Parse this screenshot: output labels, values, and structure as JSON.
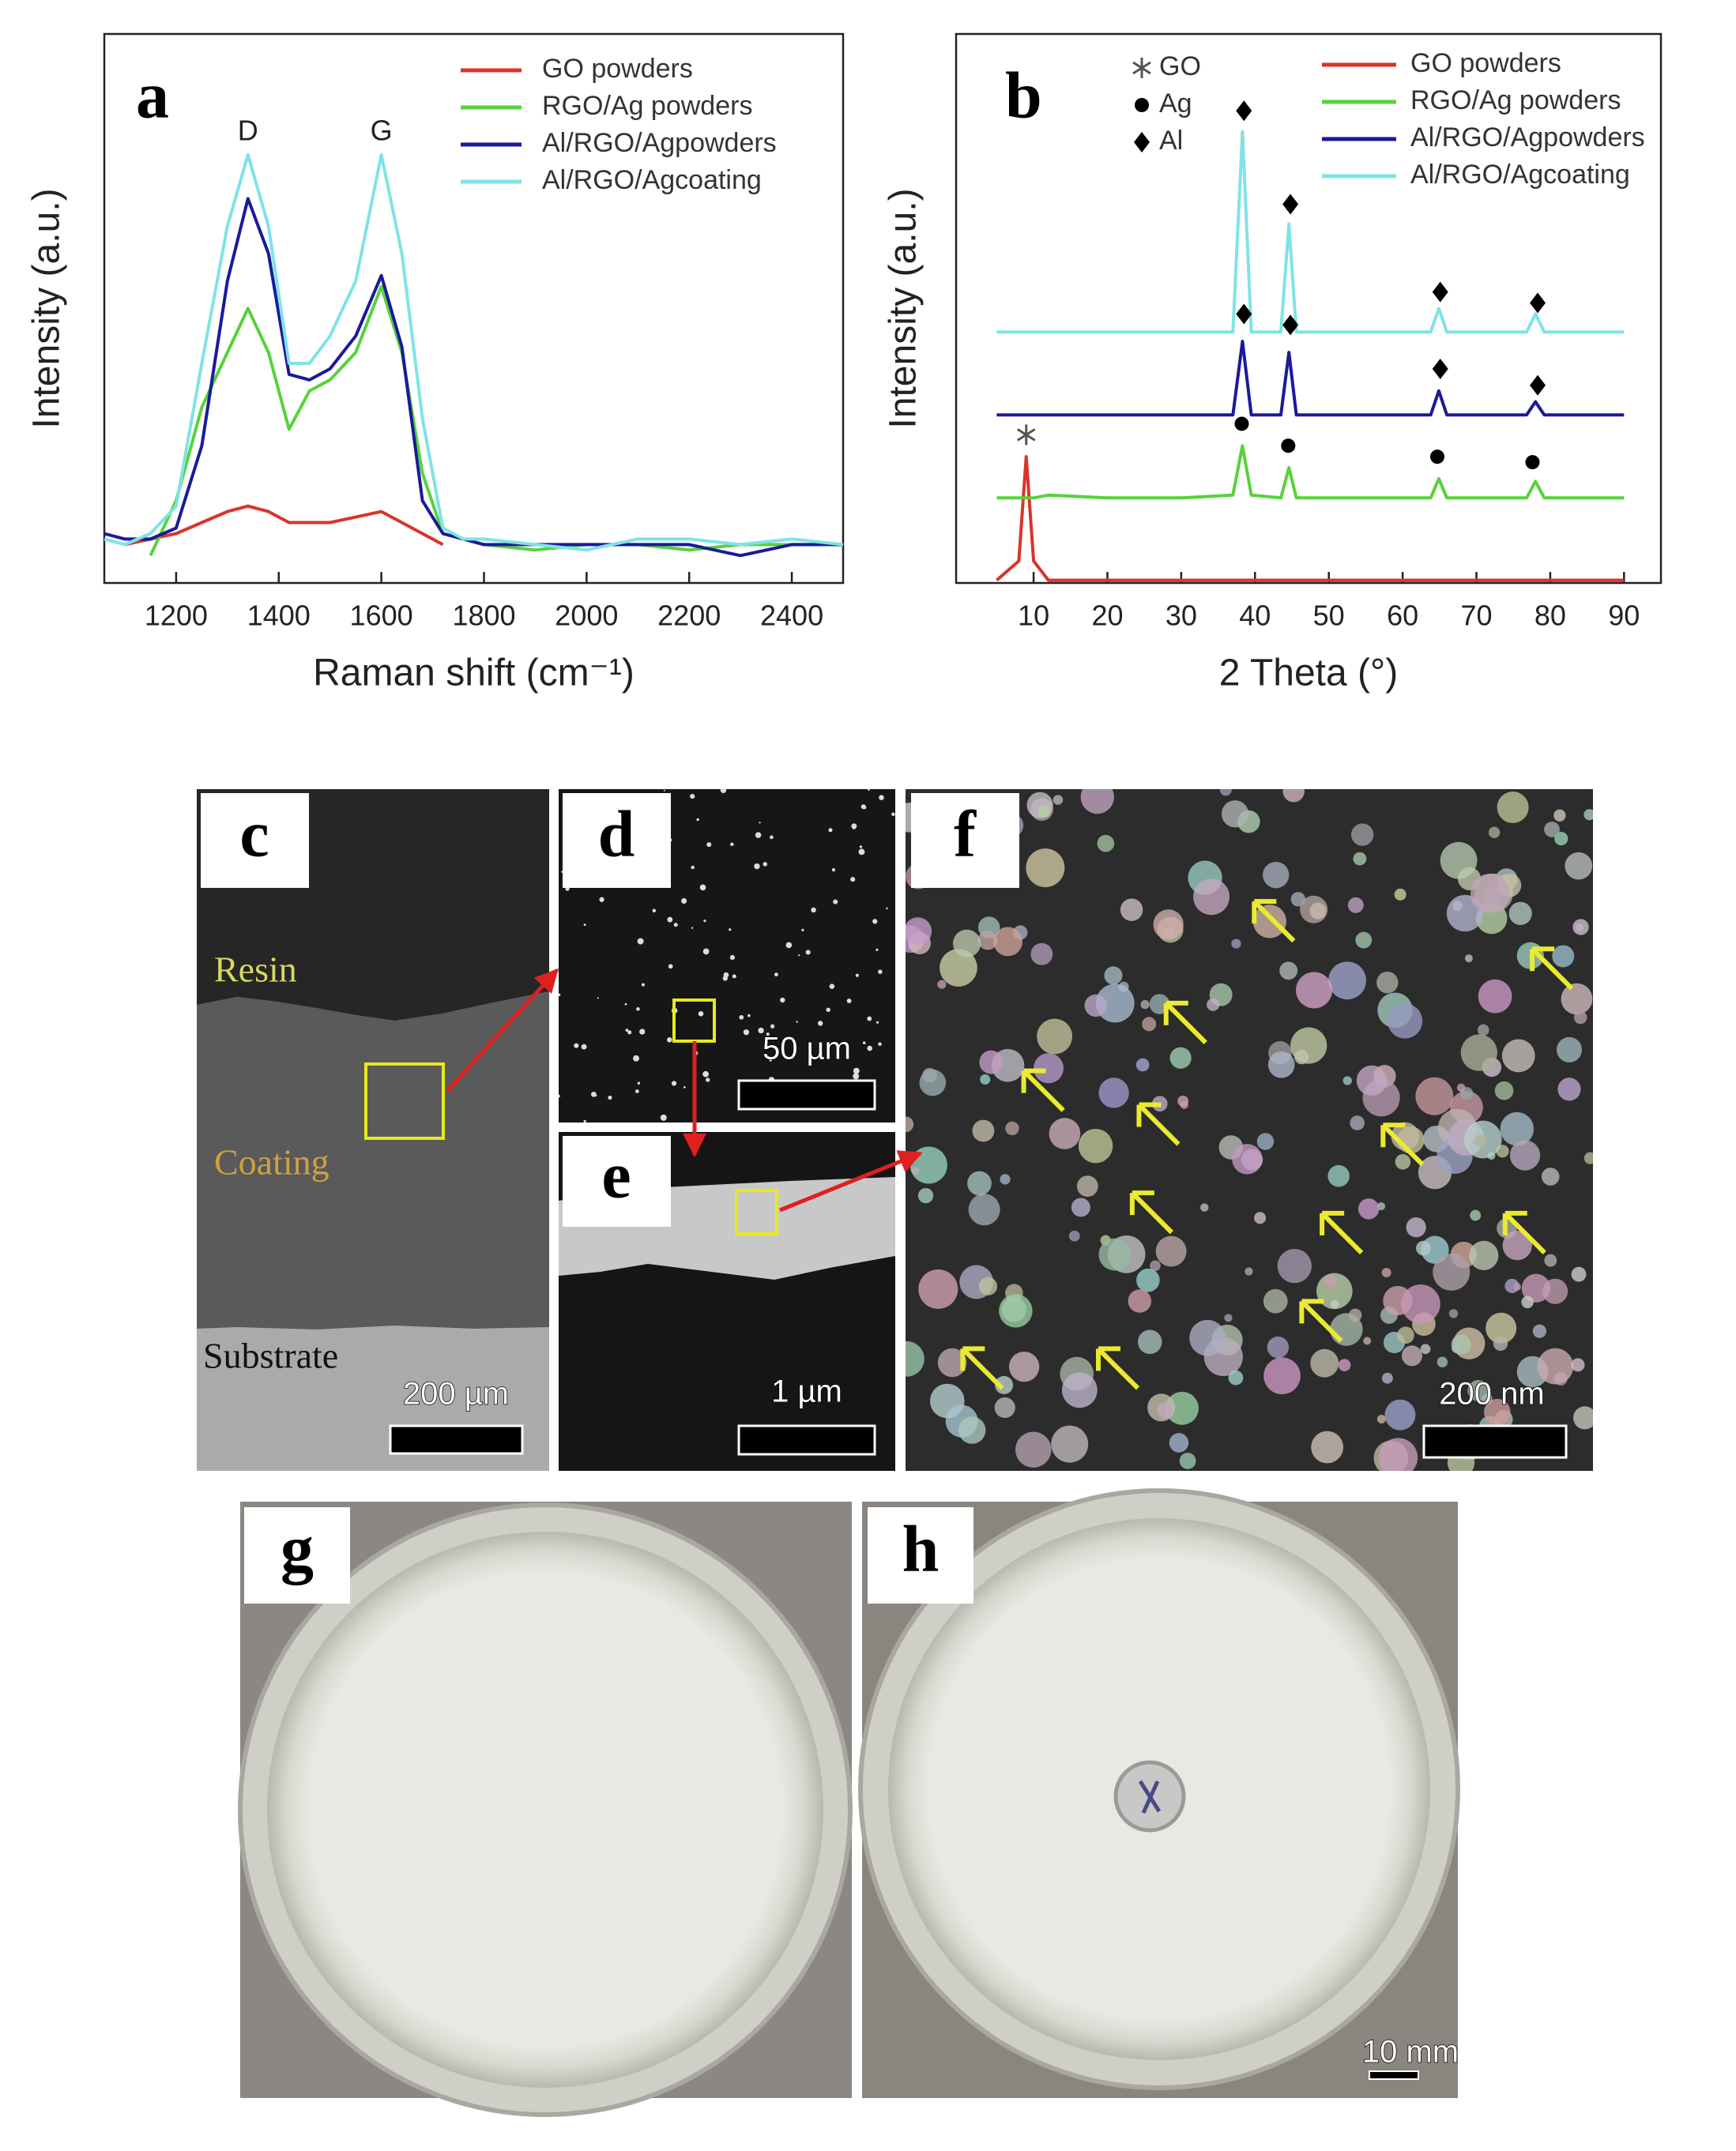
{
  "chart_data": [
    {
      "type": "line",
      "panel": "a",
      "x_label": "Raman shift (cm⁻¹)",
      "y_label": "Intensity (a.u.)",
      "x": [
        1060,
        1100,
        1150,
        1200,
        1250,
        1300,
        1340,
        1380,
        1420,
        1460,
        1500,
        1550,
        1600,
        1640,
        1680,
        1720,
        1760,
        1800,
        1900,
        2000,
        2100,
        2200,
        2300,
        2400,
        2500
      ],
      "series": [
        {
          "name": "GO powders",
          "color": "#d9342b",
          "values": [
            null,
            0.07,
            0.08,
            0.09,
            0.11,
            0.13,
            0.14,
            0.13,
            0.11,
            0.11,
            0.11,
            0.12,
            0.13,
            0.11,
            0.09,
            0.07,
            null,
            null,
            null,
            null,
            null,
            null,
            null,
            null,
            null
          ]
        },
        {
          "name": "RGO/Ag powders",
          "color": "#58d23c",
          "values": [
            null,
            null,
            0.05,
            0.15,
            0.32,
            0.42,
            0.5,
            0.42,
            0.28,
            0.35,
            0.37,
            0.42,
            0.54,
            0.42,
            0.2,
            0.09,
            0.08,
            0.07,
            0.06,
            0.07,
            0.07,
            0.06,
            0.07,
            0.07,
            0.07
          ]
        },
        {
          "name": "Al/RGO/Agpowders",
          "color": "#1a1a9a",
          "values": [
            0.09,
            0.08,
            0.08,
            0.1,
            0.25,
            0.55,
            0.7,
            0.6,
            0.38,
            0.37,
            0.39,
            0.45,
            0.56,
            0.43,
            0.15,
            0.09,
            0.08,
            0.07,
            0.07,
            0.07,
            0.07,
            0.07,
            0.05,
            0.07,
            0.07
          ]
        },
        {
          "name": "Al/RGO/Agcoating",
          "color": "#7fe3e6",
          "values": [
            0.08,
            0.07,
            0.09,
            0.14,
            0.4,
            0.65,
            0.78,
            0.65,
            0.4,
            0.4,
            0.45,
            0.55,
            0.78,
            0.6,
            0.3,
            0.1,
            0.08,
            0.08,
            0.07,
            0.06,
            0.08,
            0.08,
            0.07,
            0.08,
            0.07
          ]
        }
      ],
      "xlim": [
        1060,
        2500
      ],
      "xticks": [
        1200,
        1400,
        1600,
        1800,
        2000,
        2200,
        2400
      ],
      "ylim": [
        0,
        1
      ],
      "annotations": [
        {
          "text": "D",
          "x": 1340,
          "y": 0.82
        },
        {
          "text": "G",
          "x": 1600,
          "y": 0.82
        }
      ]
    },
    {
      "type": "line",
      "panel": "b",
      "x_label": "2 Theta (°)",
      "y_label": "Intensity (a.u.)",
      "x": [
        5,
        8,
        9,
        10,
        12,
        20,
        30,
        37,
        38.3,
        39.5,
        43.5,
        44.6,
        45.6,
        63.8,
        64.9,
        66,
        76.8,
        78,
        79.2,
        90
      ],
      "series": [
        {
          "name": "GO powders",
          "color": "#d9342b",
          "values": [
            0.005,
            0.04,
            0.23,
            0.04,
            0.005,
            0.005,
            0.005,
            0.005,
            0.005,
            0.005,
            0.005,
            0.005,
            0.005,
            0.005,
            0.005,
            0.005,
            0.005,
            0.005,
            0.005,
            0.005
          ]
        },
        {
          "name": "RGO/Ag powders",
          "color": "#58d23c",
          "values": [
            0.155,
            0.155,
            0.155,
            0.155,
            0.16,
            0.155,
            0.155,
            0.16,
            0.25,
            0.16,
            0.155,
            0.21,
            0.155,
            0.155,
            0.19,
            0.155,
            0.155,
            0.185,
            0.155,
            0.155
          ]
        },
        {
          "name": "Al/RGO/Agpowders",
          "color": "#1a1a9a",
          "values": [
            0.306,
            0.306,
            0.306,
            0.306,
            0.306,
            0.306,
            0.306,
            0.306,
            0.44,
            0.306,
            0.306,
            0.42,
            0.306,
            0.306,
            0.35,
            0.306,
            0.306,
            0.33,
            0.306,
            0.306
          ]
        },
        {
          "name": "Al/RGO/Agcoating",
          "color": "#7fe3e6",
          "values": [
            0.457,
            0.457,
            0.457,
            0.457,
            0.457,
            0.457,
            0.457,
            0.457,
            0.822,
            0.457,
            0.457,
            0.654,
            0.457,
            0.457,
            0.5,
            0.457,
            0.457,
            0.49,
            0.457,
            0.457
          ]
        }
      ],
      "xlim": [
        -0.5,
        95
      ],
      "xticks": [
        10,
        20,
        30,
        40,
        50,
        60,
        70,
        80,
        90
      ],
      "ylim": [
        0,
        1
      ],
      "phases": [
        {
          "name": "GO",
          "points": [
            {
              "x": 9,
              "y": 0.27
            }
          ]
        },
        {
          "name": "Ag",
          "points": [
            {
              "x": 38.2,
              "y": 0.29
            },
            {
              "x": 44.5,
              "y": 0.25
            },
            {
              "x": 64.7,
              "y": 0.23
            },
            {
              "x": 77.6,
              "y": 0.22
            }
          ]
        },
        {
          "name": "Al",
          "points": [
            {
              "x": 38.5,
              "y": 0.49
            },
            {
              "x": 44.8,
              "y": 0.47
            },
            {
              "x": 65.1,
              "y": 0.39
            },
            {
              "x": 78.3,
              "y": 0.36
            },
            {
              "x": 38.5,
              "y": 0.86
            },
            {
              "x": 44.8,
              "y": 0.69
            },
            {
              "x": 65.1,
              "y": 0.53
            },
            {
              "x": 78.3,
              "y": 0.51
            }
          ]
        }
      ]
    }
  ],
  "images": {
    "c": {
      "label": "c",
      "resin": "Resin",
      "coating": "Coating",
      "substrate": "Substrate",
      "scale": "200 µm"
    },
    "d": {
      "label": "d",
      "scale": "50 µm"
    },
    "e": {
      "label": "e",
      "scale": "1 µm"
    },
    "f": {
      "label": "f",
      "scale": "200 nm"
    },
    "g": {
      "label": "g"
    },
    "h": {
      "label": "h",
      "scale": "10 mm"
    }
  }
}
